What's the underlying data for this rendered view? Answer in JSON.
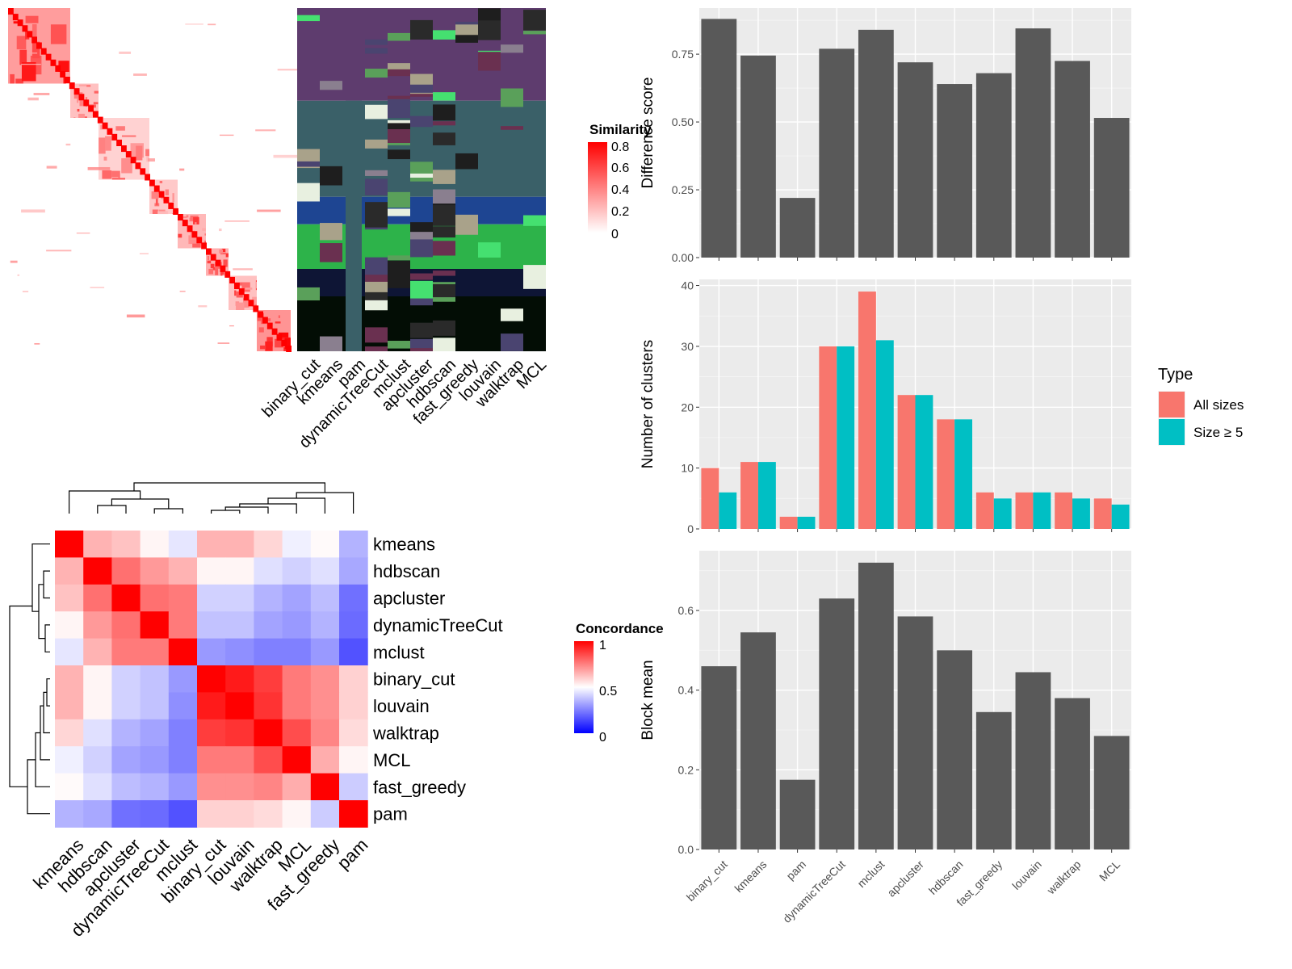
{
  "chart_data": [
    {
      "type": "heatmap",
      "name": "similarity-heatmap",
      "legend_title": "Similarity",
      "legend_ticks": [
        "0.8",
        "0.6",
        "0.4",
        "0.2",
        "0"
      ],
      "legend_colors": [
        "#ffffff",
        "#ff0000"
      ],
      "blocks": [
        {
          "start": 0.0,
          "end": 0.22,
          "intensity": 0.55
        },
        {
          "start": 0.22,
          "end": 0.32,
          "intensity": 0.35
        },
        {
          "start": 0.32,
          "end": 0.5,
          "intensity": 0.25
        },
        {
          "start": 0.5,
          "end": 0.6,
          "intensity": 0.3
        },
        {
          "start": 0.6,
          "end": 0.7,
          "intensity": 0.4
        },
        {
          "start": 0.7,
          "end": 0.78,
          "intensity": 0.45
        },
        {
          "start": 0.78,
          "end": 0.88,
          "intensity": 0.35
        },
        {
          "start": 0.88,
          "end": 1.0,
          "intensity": 0.6
        }
      ]
    },
    {
      "type": "heatmap",
      "name": "cluster-membership",
      "columns": [
        "binary_cut",
        "kmeans",
        "pam",
        "dynamicTreeCut",
        "mclust",
        "apcluster",
        "hdbscan",
        "fast_greedy",
        "louvain",
        "walktrap",
        "MCL"
      ],
      "band_colors": [
        "#5e3c6e",
        "#3a6068",
        "#1e4592",
        "#2db34a",
        "#0e1535",
        "#030d05"
      ],
      "bands": [
        0.27,
        0.28,
        0.08,
        0.13,
        0.08,
        0.16
      ],
      "accent_colors": [
        "#e8f0e0",
        "#8a7f8f",
        "#2a2a2a",
        "#5aa05a",
        "#a9a28a",
        "#1e1e1e",
        "#4a4470",
        "#6a3050",
        "#45e070"
      ]
    },
    {
      "type": "heatmap",
      "name": "concordance-heatmap",
      "legend_title": "Concordance",
      "legend_ticks": [
        "1",
        "0.5",
        "0"
      ],
      "legend_colors": [
        "#0000ff",
        "#ffffff",
        "#ff0000"
      ],
      "rows": [
        "kmeans",
        "hdbscan",
        "apcluster",
        "dynamicTreeCut",
        "mclust",
        "binary_cut",
        "louvain",
        "walktrap",
        "MCL",
        "fast_greedy",
        "pam"
      ],
      "columns": [
        "kmeans",
        "hdbscan",
        "apcluster",
        "dynamicTreeCut",
        "mclust",
        "binary_cut",
        "louvain",
        "walktrap",
        "MCL",
        "fast_greedy",
        "pam"
      ],
      "values": [
        [
          1.0,
          0.65,
          0.62,
          0.52,
          0.45,
          0.65,
          0.65,
          0.58,
          0.47,
          0.51,
          0.35
        ],
        [
          0.65,
          1.0,
          0.78,
          0.7,
          0.65,
          0.52,
          0.52,
          0.44,
          0.41,
          0.44,
          0.33
        ],
        [
          0.62,
          0.78,
          1.0,
          0.78,
          0.76,
          0.41,
          0.41,
          0.35,
          0.32,
          0.37,
          0.22
        ],
        [
          0.52,
          0.7,
          0.78,
          1.0,
          0.76,
          0.38,
          0.38,
          0.32,
          0.3,
          0.35,
          0.21
        ],
        [
          0.45,
          0.65,
          0.76,
          0.76,
          1.0,
          0.3,
          0.28,
          0.25,
          0.25,
          0.3,
          0.16
        ],
        [
          0.65,
          0.52,
          0.41,
          0.38,
          0.3,
          1.0,
          0.95,
          0.88,
          0.76,
          0.72,
          0.59
        ],
        [
          0.65,
          0.52,
          0.41,
          0.38,
          0.28,
          0.95,
          1.0,
          0.9,
          0.76,
          0.72,
          0.59
        ],
        [
          0.58,
          0.44,
          0.35,
          0.32,
          0.25,
          0.88,
          0.9,
          1.0,
          0.85,
          0.74,
          0.57
        ],
        [
          0.47,
          0.41,
          0.32,
          0.3,
          0.25,
          0.76,
          0.76,
          0.85,
          1.0,
          0.66,
          0.52
        ],
        [
          0.51,
          0.44,
          0.37,
          0.35,
          0.3,
          0.72,
          0.72,
          0.74,
          0.66,
          1.0,
          0.4
        ],
        [
          0.35,
          0.33,
          0.22,
          0.21,
          0.16,
          0.59,
          0.59,
          0.57,
          0.52,
          0.4,
          1.0
        ]
      ]
    },
    {
      "type": "bar",
      "name": "difference-score",
      "categories": [
        "binary_cut",
        "kmeans",
        "pam",
        "dynamicTreeCut",
        "mclust",
        "apcluster",
        "hdbscan",
        "fast_greedy",
        "louvain",
        "walktrap",
        "MCL"
      ],
      "values": [
        0.88,
        0.745,
        0.22,
        0.77,
        0.84,
        0.72,
        0.64,
        0.68,
        0.845,
        0.725,
        0.515
      ],
      "ylabel": "Difference score",
      "ylim": [
        0,
        0.92
      ],
      "yticks": [
        "0.00",
        "0.25",
        "0.50",
        "0.75"
      ],
      "ytick_values": [
        0,
        0.25,
        0.5,
        0.75
      ],
      "bar_color": "#595959"
    },
    {
      "type": "bar",
      "name": "number-of-clusters",
      "categories": [
        "binary_cut",
        "kmeans",
        "pam",
        "dynamicTreeCut",
        "mclust",
        "apcluster",
        "hdbscan",
        "fast_greedy",
        "louvain",
        "walktrap",
        "MCL"
      ],
      "series": [
        {
          "name": "All sizes",
          "color": "#f8766d",
          "values": [
            10,
            11,
            2,
            30,
            39,
            22,
            18,
            6,
            6,
            6,
            5
          ]
        },
        {
          "name": "Size ≥ 5",
          "color": "#00bfc4",
          "values": [
            6,
            11,
            2,
            30,
            31,
            22,
            18,
            5,
            6,
            5,
            4
          ]
        }
      ],
      "ylabel": "Number of clusters",
      "ylim": [
        0,
        41
      ],
      "yticks": [
        "0",
        "10",
        "20",
        "30",
        "40"
      ],
      "ytick_values": [
        0,
        10,
        20,
        30,
        40
      ],
      "legend_title": "Type",
      "legend_placement": "right"
    },
    {
      "type": "bar",
      "name": "block-mean",
      "categories": [
        "binary_cut",
        "kmeans",
        "pam",
        "dynamicTreeCut",
        "mclust",
        "apcluster",
        "hdbscan",
        "fast_greedy",
        "louvain",
        "walktrap",
        "MCL"
      ],
      "values": [
        0.46,
        0.545,
        0.175,
        0.63,
        0.72,
        0.585,
        0.5,
        0.345,
        0.445,
        0.38,
        0.285
      ],
      "ylabel": "Block mean",
      "ylim": [
        0,
        0.75
      ],
      "yticks": [
        "0.0",
        "0.2",
        "0.4",
        "0.6"
      ],
      "ytick_values": [
        0,
        0.2,
        0.4,
        0.6
      ],
      "bar_color": "#595959"
    }
  ]
}
